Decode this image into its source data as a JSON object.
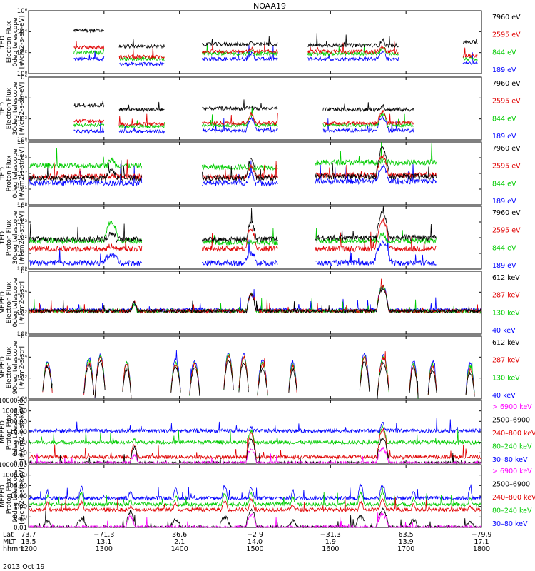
{
  "chart_data": {
    "type": "line",
    "title": "NOAA19",
    "date_label": "2013 Oct 19",
    "x_axis": {
      "row_labels": [
        "Lat",
        "MLT",
        "hhmm"
      ],
      "ticks": [
        {
          "lat": "73.7",
          "mlt": "13.5",
          "hhmm": "1200"
        },
        {
          "lat": "−71.3",
          "mlt": "13.1",
          "hhmm": "1300"
        },
        {
          "lat": "36.6",
          "mlt": "2.1",
          "hhmm": "1400"
        },
        {
          "lat": "−2.9",
          "mlt": "14.0",
          "hhmm": "1500"
        },
        {
          "lat": "−31.3",
          "mlt": "1.9",
          "hhmm": "1600"
        },
        {
          "lat": "63.5",
          "mlt": "13.9",
          "hhmm": "1700"
        },
        {
          "lat": "−79.9",
          "mlt": "17.1",
          "hhmm": "1800"
        }
      ],
      "range_hours": [
        12,
        18
      ]
    },
    "colors": {
      "black": "#000000",
      "red": "#e00000",
      "green": "#00cc00",
      "blue": "#0000ff",
      "magenta": "#ff00ff"
    },
    "panels": [
      {
        "ylabel": [
          "TED",
          "Electron Flux",
          "0deg telescope",
          "[#/cm2-s-str-eV]"
        ],
        "yscale": "log",
        "ylim_exp": [
          0,
          6
        ],
        "ytick_labels": [
          "10⁰",
          "10²",
          "10⁴",
          "10⁶"
        ],
        "legend": [
          {
            "label": "7960 eV",
            "color": "black"
          },
          {
            "label": "2595 eV",
            "color": "red"
          },
          {
            "label": "844 eV",
            "color": "green"
          },
          {
            "label": "189 eV",
            "color": "blue"
          }
        ],
        "regions": [
          {
            "start": 12.6,
            "end": 13.0,
            "logs": [
              4.1,
              2.5,
              2.0,
              1.4
            ]
          },
          {
            "start": 13.2,
            "end": 13.8,
            "logs": [
              2.6,
              1.6,
              1.4,
              0.9
            ]
          },
          {
            "start": 14.3,
            "end": 15.3,
            "logs": [
              2.8,
              2.1,
              1.9,
              1.4
            ]
          },
          {
            "start": 15.7,
            "end": 16.9,
            "logs": [
              2.7,
              2.1,
              1.9,
              1.4
            ]
          },
          {
            "start": 17.75,
            "end": 17.95,
            "logs": [
              3.0,
              1.7,
              1.4,
              1.0
            ]
          }
        ],
        "peaks": [
          {
            "center": 14.95,
            "width": 0.09,
            "logs": [
              3.0,
              2.4,
              2.2,
              1.9
            ]
          },
          {
            "center": 16.69,
            "width": 0.1,
            "logs": [
              3.2,
              2.6,
              2.4,
              2.0
            ]
          }
        ]
      },
      {
        "ylabel": [
          "TED",
          "Electron Flux",
          "30deg telescope",
          "[#/cm2-s-str-eV]"
        ],
        "yscale": "log",
        "ylim_exp": [
          0,
          6
        ],
        "ytick_labels": [
          "10⁰",
          "10²",
          "10⁴",
          "10⁶"
        ],
        "legend": [
          {
            "label": "7960 eV",
            "color": "black"
          },
          {
            "label": "2595 eV",
            "color": "red"
          },
          {
            "label": "844 eV",
            "color": "green"
          },
          {
            "label": "189 eV",
            "color": "blue"
          }
        ],
        "regions": [
          {
            "start": 12.6,
            "end": 13.0,
            "logs": [
              3.3,
              1.8,
              1.4,
              0.8
            ]
          },
          {
            "start": 13.2,
            "end": 13.8,
            "logs": [
              2.9,
              1.5,
              1.3,
              0.8
            ]
          },
          {
            "start": 14.3,
            "end": 15.3,
            "logs": [
              3.0,
              1.6,
              1.4,
              0.9
            ]
          },
          {
            "start": 15.9,
            "end": 17.1,
            "logs": [
              2.9,
              1.6,
              1.4,
              0.9
            ]
          }
        ],
        "peaks": [
          {
            "center": 14.95,
            "width": 0.09,
            "logs": [
              3.1,
              2.4,
              2.3,
              2.0
            ]
          },
          {
            "center": 16.69,
            "width": 0.1,
            "logs": [
              3.3,
              2.7,
              2.5,
              2.1
            ]
          }
        ]
      },
      {
        "ylabel": [
          "TED",
          "Proton Flux",
          "0deg telescope",
          "[#/cm2-s-str-eV]"
        ],
        "yscale": "log",
        "ylim_exp": [
          0,
          4
        ],
        "ytick_labels": [
          "10⁰",
          "10¹",
          "10²",
          "10³",
          "10⁴"
        ],
        "legend": [
          {
            "label": "7960 eV",
            "color": "black"
          },
          {
            "label": "2595 eV",
            "color": "red"
          },
          {
            "label": "844 eV",
            "color": "green"
          },
          {
            "label": "189 eV",
            "color": "blue"
          }
        ],
        "regions": [
          {
            "start": 12.0,
            "end": 13.5,
            "logs": [
              1.7,
              1.8,
              2.5,
              1.4
            ]
          },
          {
            "start": 14.3,
            "end": 15.3,
            "logs": [
              1.7,
              1.8,
              2.4,
              1.4
            ]
          },
          {
            "start": 15.8,
            "end": 17.4,
            "logs": [
              1.8,
              1.9,
              2.7,
              1.5
            ]
          }
        ],
        "peaks": [
          {
            "center": 14.95,
            "width": 0.1,
            "logs": [
              2.9,
              2.5,
              2.3,
              2.0
            ]
          },
          {
            "center": 16.69,
            "width": 0.12,
            "logs": [
              3.6,
              3.1,
              2.8,
              2.5
            ]
          },
          {
            "center": 13.1,
            "width": 0.15,
            "logs": [
              2.2,
              1.9,
              2.9,
              1.2
            ]
          }
        ]
      },
      {
        "ylabel": [
          "TED",
          "Proton Flux",
          "30deg telescope",
          "[#/cm2-s-str-eV]"
        ],
        "yscale": "log",
        "ylim_exp": [
          0,
          4
        ],
        "ytick_labels": [
          "10⁰",
          "10¹",
          "10²",
          "10³",
          "10⁴"
        ],
        "legend": [
          {
            "label": "7960 eV",
            "color": "black"
          },
          {
            "label": "2595 eV",
            "color": "red"
          },
          {
            "label": "844 eV",
            "color": "green"
          },
          {
            "label": "189 eV",
            "color": "blue"
          }
        ],
        "regions": [
          {
            "start": 12.0,
            "end": 13.5,
            "logs": [
              1.9,
              1.3,
              1.8,
              0.4
            ]
          },
          {
            "start": 14.3,
            "end": 15.3,
            "logs": [
              1.9,
              1.3,
              1.7,
              0.4
            ]
          },
          {
            "start": 15.8,
            "end": 17.4,
            "logs": [
              2.0,
              1.3,
              1.8,
              0.4
            ]
          }
        ],
        "peaks": [
          {
            "center": 14.95,
            "width": 0.1,
            "logs": [
              3.0,
              2.5,
              1.5,
              1.0
            ]
          },
          {
            "center": 16.69,
            "width": 0.12,
            "logs": [
              3.6,
              3.1,
              2.2,
              1.7
            ]
          },
          {
            "center": 13.1,
            "width": 0.15,
            "logs": [
              2.3,
              1.5,
              3.0,
              0.9
            ]
          }
        ]
      },
      {
        "ylabel": [
          "MEPED",
          "Electron Flux",
          "0deg telescope",
          "[#/cm2-s-str]"
        ],
        "yscale": "log",
        "ylim_exp": [
          0,
          6
        ],
        "ytick_labels": [
          "10⁰",
          "10²",
          "10⁴",
          "10⁶"
        ],
        "legend": [
          {
            "label": "612 keV",
            "color": "black"
          },
          {
            "label": "287 keV",
            "color": "red"
          },
          {
            "label": "130 keV",
            "color": "green"
          },
          {
            "label": "40 keV",
            "color": "blue"
          }
        ],
        "regions": [
          {
            "start": 12.0,
            "end": 18.0,
            "logs": [
              2.2,
              2.2,
              2.2,
              2.3
            ]
          }
        ],
        "peaks": [
          {
            "center": 14.95,
            "width": 0.09,
            "logs": [
              3.7,
              3.8,
              3.8,
              3.8
            ]
          },
          {
            "center": 16.69,
            "width": 0.11,
            "logs": [
              4.3,
              4.5,
              4.5,
              4.6
            ]
          },
          {
            "center": 13.4,
            "width": 0.08,
            "logs": [
              3.0,
              3.1,
              2.8,
              2.9
            ]
          }
        ]
      },
      {
        "ylabel": [
          "MEPED",
          "Electron Flux",
          "90deg telescope",
          "[#/cm2-s-str]"
        ],
        "yscale": "log",
        "ylim_exp": [
          0,
          6
        ],
        "ytick_labels": [
          "10⁰",
          "10²",
          "10⁴",
          "10⁶"
        ],
        "legend": [
          {
            "label": "612 keV",
            "color": "black"
          },
          {
            "label": "287 keV",
            "color": "red"
          },
          {
            "label": "130 keV",
            "color": "green"
          },
          {
            "label": "40 keV",
            "color": "blue"
          }
        ],
        "regions": [],
        "peaks": [
          {
            "center": 12.25,
            "width": 0.07,
            "logs": [
              3.1,
              3.3,
              3.4,
              3.6
            ]
          },
          {
            "center": 12.8,
            "width": 0.07,
            "logs": [
              3.2,
              3.5,
              3.7,
              3.9
            ]
          },
          {
            "center": 12.95,
            "width": 0.07,
            "logs": [
              3.6,
              4.0,
              4.1,
              4.2
            ]
          },
          {
            "center": 13.3,
            "width": 0.06,
            "logs": [
              2.8,
              3.3,
              3.4,
              3.5
            ]
          },
          {
            "center": 13.95,
            "width": 0.07,
            "logs": [
              3.0,
              3.3,
              3.5,
              3.8
            ]
          },
          {
            "center": 14.2,
            "width": 0.07,
            "logs": [
              2.9,
              3.3,
              3.4,
              3.6
            ]
          },
          {
            "center": 14.65,
            "width": 0.07,
            "logs": [
              3.7,
              4.1,
              4.3,
              4.4
            ]
          },
          {
            "center": 14.85,
            "width": 0.07,
            "logs": [
              3.5,
              4.0,
              4.1,
              4.2
            ]
          },
          {
            "center": 15.1,
            "width": 0.07,
            "logs": [
              2.9,
              3.3,
              3.5,
              3.7
            ]
          },
          {
            "center": 15.5,
            "width": 0.06,
            "logs": [
              2.8,
              3.2,
              3.4,
              3.6
            ]
          },
          {
            "center": 16.45,
            "width": 0.07,
            "logs": [
              3.5,
              3.9,
              4.1,
              4.3
            ]
          },
          {
            "center": 16.7,
            "width": 0.08,
            "logs": [
              3.4,
              3.9,
              4.0,
              4.1
            ]
          },
          {
            "center": 17.1,
            "width": 0.06,
            "logs": [
              2.9,
              3.2,
              3.4,
              3.7
            ]
          },
          {
            "center": 17.35,
            "width": 0.06,
            "logs": [
              2.8,
              3.1,
              3.3,
              3.6
            ]
          },
          {
            "center": 17.85,
            "width": 0.06,
            "logs": [
              2.5,
              2.8,
              3.1,
              3.5
            ]
          }
        ]
      },
      {
        "ylabel": [
          "MEPED",
          "Proton Flux",
          "0deg telescope",
          "[#/cm2-s-str-keV]"
        ],
        "yscale": "log",
        "ylim_exp": [
          -2,
          4
        ],
        "ytick_labels": [
          "10000.00",
          "1000.00",
          "100.00",
          "10.00",
          "1.00",
          "0.10",
          "0.01"
        ],
        "legend": [
          {
            "label": "> 6900 keV",
            "color": "magenta"
          },
          {
            "label": "2500–6900",
            "color": "black"
          },
          {
            "label": "240–800 keV",
            "color": "red"
          },
          {
            "label": "80–240 keV",
            "color": "green"
          },
          {
            "label": "30–80 keV",
            "color": "blue"
          }
        ],
        "regions": [
          {
            "start": 12.0,
            "end": 18.0,
            "logs": [
              -2.0,
              -2.0,
              -1.4,
              0.0,
              1.1
            ]
          }
        ],
        "peaks": [
          {
            "center": 14.95,
            "width": 0.07,
            "logs": [
              -0.7,
              0.2,
              0.8,
              1.1,
              1.4
            ]
          },
          {
            "center": 16.69,
            "width": 0.08,
            "logs": [
              -0.6,
              0.4,
              1.2,
              1.5,
              1.8
            ]
          },
          {
            "center": 13.4,
            "width": 0.05,
            "logs": [
              -1.2,
              -0.5,
              -0.2,
              0.3,
              1.0
            ]
          }
        ]
      },
      {
        "ylabel": [
          "MEPED",
          "Proton Flux",
          "90deg telescope",
          "[#/cm2-s-str-keV]"
        ],
        "yscale": "log",
        "ylim_exp": [
          -2,
          4
        ],
        "ytick_labels": [
          "10000.00",
          "1000.00",
          "100.00",
          "10.00",
          "1.00",
          "0.10",
          "0.01"
        ],
        "legend": [
          {
            "label": "> 6900 keV",
            "color": "magenta"
          },
          {
            "label": "2500–6900",
            "color": "black"
          },
          {
            "label": "240–800 keV",
            "color": "red"
          },
          {
            "label": "80–240 keV",
            "color": "green"
          },
          {
            "label": "30–80 keV",
            "color": "blue"
          }
        ],
        "regions": [
          {
            "start": 12.0,
            "end": 18.0,
            "logs": [
              -2.0,
              -2.0,
              -0.3,
              0.2,
              0.8
            ]
          }
        ],
        "peaks": [
          {
            "center": 12.25,
            "width": 0.06,
            "logs": [
              -2.0,
              -1.4,
              0.3,
              1.0,
              1.5
            ]
          },
          {
            "center": 12.7,
            "width": 0.07,
            "logs": [
              -2.0,
              -1.2,
              0.4,
              1.2,
              1.8
            ]
          },
          {
            "center": 13.35,
            "width": 0.06,
            "logs": [
              -1.0,
              -0.5,
              0.0,
              0.6,
              1.4
            ]
          },
          {
            "center": 13.95,
            "width": 0.07,
            "logs": [
              -2.0,
              -1.3,
              0.3,
              0.9,
              1.6
            ]
          },
          {
            "center": 14.6,
            "width": 0.07,
            "logs": [
              -2.0,
              -1.0,
              0.5,
              1.2,
              2.0
            ]
          },
          {
            "center": 14.95,
            "width": 0.07,
            "logs": [
              -0.8,
              -0.3,
              0.6,
              1.2,
              1.8
            ]
          },
          {
            "center": 15.5,
            "width": 0.06,
            "logs": [
              -2.0,
              -1.4,
              0.2,
              0.9,
              1.5
            ]
          },
          {
            "center": 16.4,
            "width": 0.07,
            "logs": [
              -2.0,
              -1.0,
              0.5,
              1.3,
              2.0
            ]
          },
          {
            "center": 16.69,
            "width": 0.08,
            "logs": [
              -0.8,
              -0.3,
              0.6,
              1.3,
              2.0
            ]
          },
          {
            "center": 17.1,
            "width": 0.06,
            "logs": [
              -2.0,
              -1.3,
              0.2,
              0.8,
              1.5
            ]
          },
          {
            "center": 17.85,
            "width": 0.06,
            "logs": [
              -2.0,
              -1.5,
              0.1,
              0.8,
              1.7
            ]
          }
        ]
      }
    ]
  }
}
